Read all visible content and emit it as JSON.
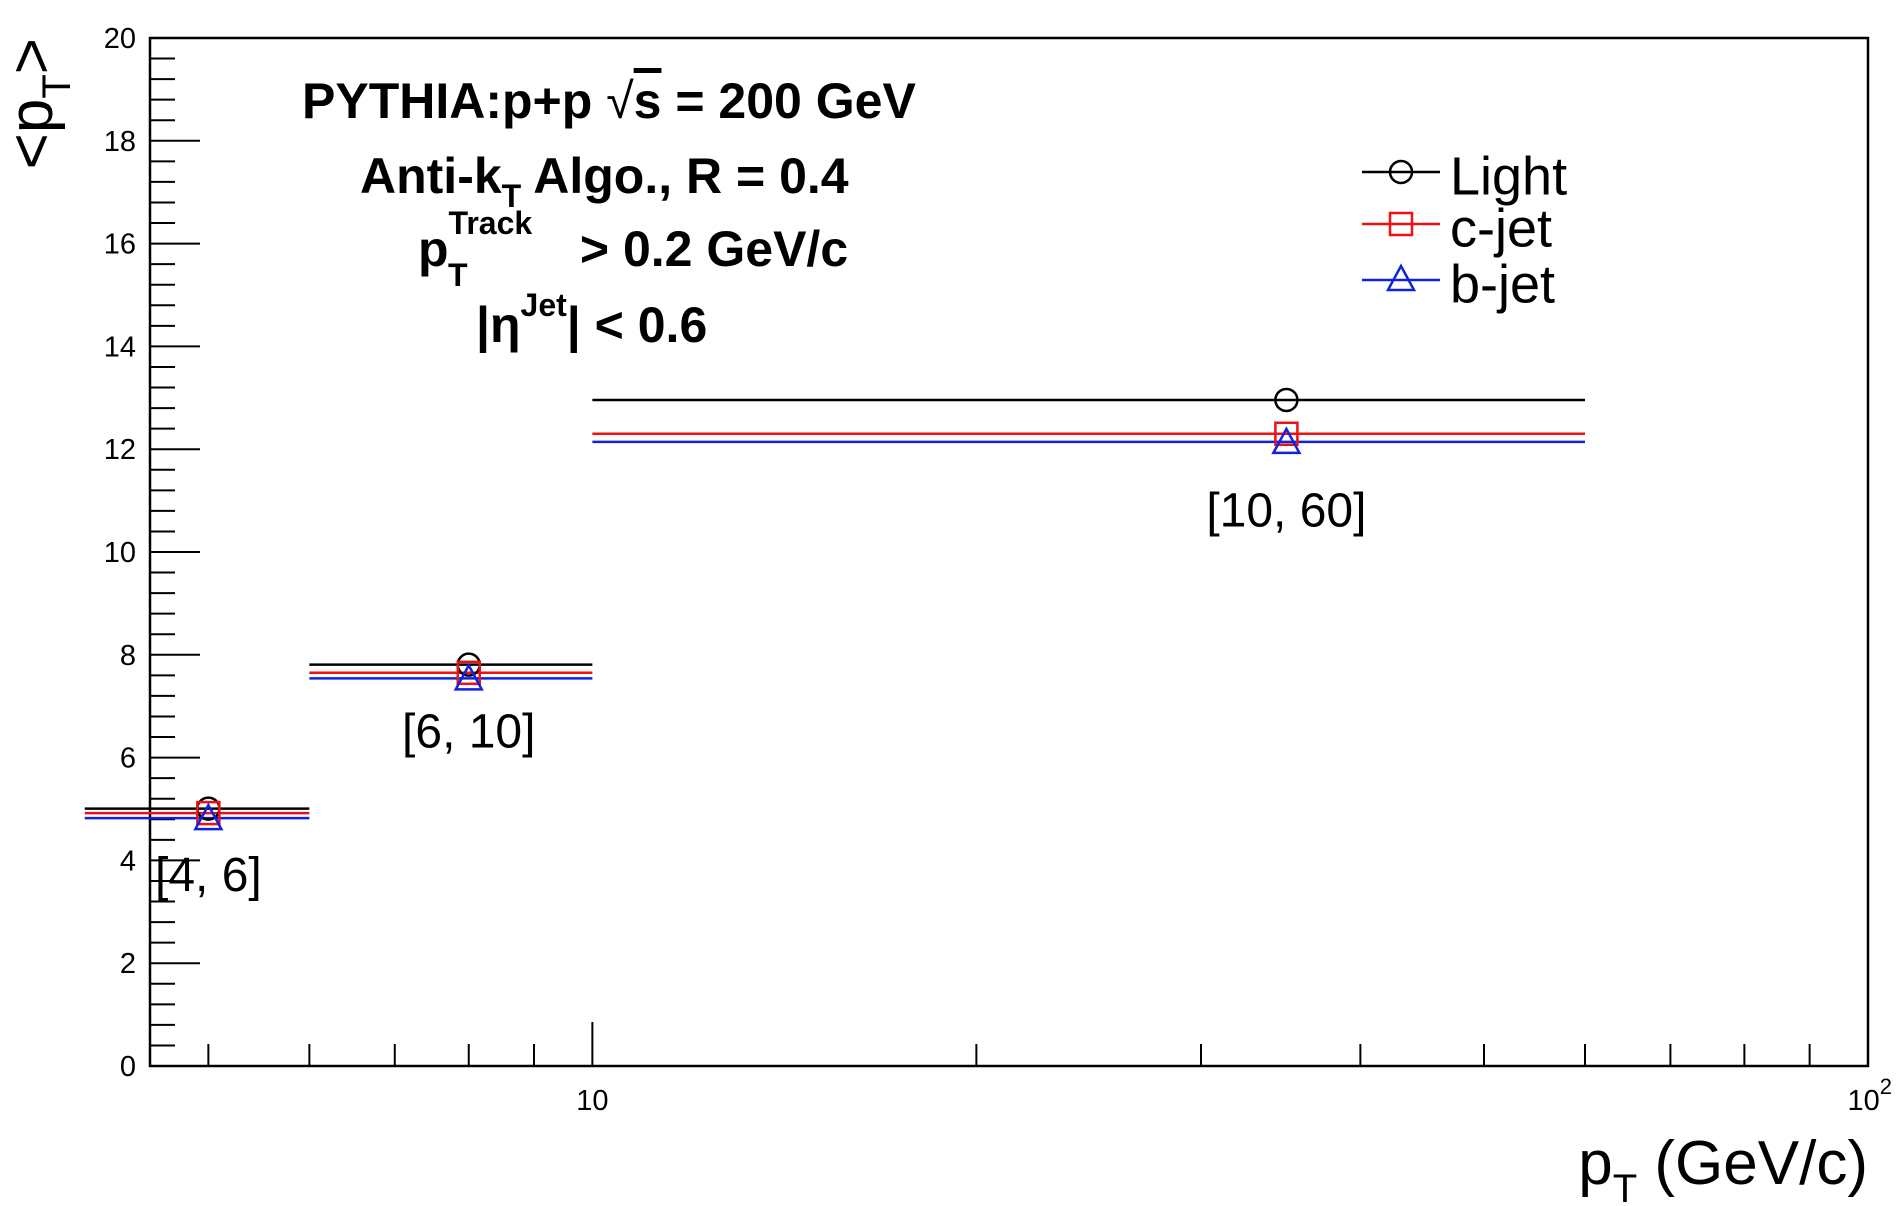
{
  "chart_data": {
    "type": "scatter",
    "title_lines": [
      {
        "main": "PYTHIA:p+p ",
        "sqrt": "√",
        "sqrt_arg": "s",
        "rest": " = 200 GeV"
      },
      {
        "main": "Anti-k",
        "sub": "T",
        "rest": " Algo., R = 0.4"
      },
      {
        "main": "p",
        "sup": "Track",
        "sub": "T",
        "rest": " > 0.2 GeV/c"
      },
      {
        "main": "|η",
        "sup": "Jet",
        "rest": "| < 0.6"
      }
    ],
    "xlabel": {
      "main": "p",
      "sub": "T",
      "rest": " (GeV/c)"
    },
    "ylabel": {
      "open": "<p",
      "sub": "T",
      "close": ">"
    },
    "x_scale": "log",
    "xlim": [
      4.5,
      100
    ],
    "ylim": [
      0,
      20
    ],
    "y_ticks": [
      0,
      2,
      4,
      6,
      8,
      10,
      12,
      14,
      16,
      18,
      20
    ],
    "y_tick_labels": [
      "0",
      "2",
      "4",
      "6",
      "8",
      "10",
      "12",
      "14",
      "16",
      "18",
      "20"
    ],
    "x_tick_labels": [
      {
        "value": 10,
        "label": "10"
      },
      {
        "value": 100,
        "label": "10",
        "sup": "2"
      }
    ],
    "bins": [
      {
        "label": "[4, 6]",
        "low": 4,
        "high": 6,
        "center": 5
      },
      {
        "label": "[6, 10]",
        "low": 6,
        "high": 10,
        "center": 8
      },
      {
        "label": "[10, 60]",
        "low": 10,
        "high": 60,
        "center": 35
      }
    ],
    "series": [
      {
        "name": "Light",
        "color": "#000000",
        "marker": "circle",
        "y": [
          4.95,
          7.75,
          12.9
        ]
      },
      {
        "name": "c-jet",
        "color": "#ee1111",
        "marker": "square",
        "y": [
          4.92,
          7.65,
          12.3
        ]
      },
      {
        "name": "b-jet",
        "color": "#1122dd",
        "marker": "triangle",
        "y": [
          4.88,
          7.6,
          12.2
        ]
      }
    ],
    "annotations": [
      {
        "text": "[4, 6]",
        "x": 5,
        "y": 3.4
      },
      {
        "text": "[6, 10]",
        "x": 8,
        "y": 6.2
      },
      {
        "text": "[10, 60]",
        "x": 35,
        "y": 10.5
      }
    ],
    "legend_position": "top-right",
    "grid": false
  }
}
